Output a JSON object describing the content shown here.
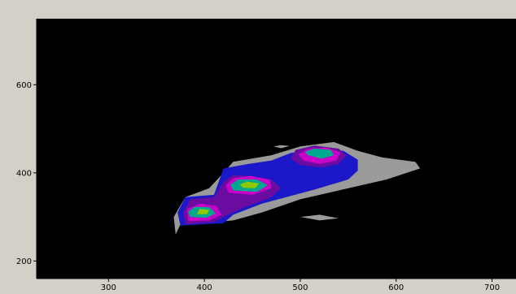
{
  "chart_data": {
    "type": "heatmap",
    "title": "",
    "xlabel": "",
    "ylabel": "",
    "xlim": [
      225,
      725
    ],
    "ylim": [
      160,
      750
    ],
    "x_ticks": [
      300,
      400,
      500,
      600,
      700
    ],
    "y_ticks": [
      200,
      400,
      600
    ],
    "grid": false,
    "legend": "none",
    "colors": {
      "frame": "#d4d0c8",
      "background": "#000000",
      "level_1": "#9a9a9a",
      "level_2": "#1a18c8",
      "level_3": "#6a0ca0",
      "level_4": "#c800c8",
      "level_5": "#00a890",
      "level_6": "#90c800"
    },
    "density_regions": [
      {
        "level": 1,
        "polygon": [
          [
            370,
            260
          ],
          [
            375,
            283
          ],
          [
            400,
            286
          ],
          [
            430,
            292
          ],
          [
            460,
            310
          ],
          [
            500,
            340
          ],
          [
            540,
            360
          ],
          [
            590,
            385
          ],
          [
            625,
            410
          ],
          [
            620,
            425
          ],
          [
            585,
            435
          ],
          [
            560,
            450
          ],
          [
            535,
            470
          ],
          [
            500,
            460
          ],
          [
            470,
            440
          ],
          [
            430,
            425
          ],
          [
            420,
            400
          ],
          [
            405,
            365
          ],
          [
            380,
            345
          ],
          [
            368,
            300
          ]
        ]
      },
      {
        "level": 1,
        "polygon": [
          [
            500,
            300
          ],
          [
            520,
            305
          ],
          [
            540,
            297
          ],
          [
            520,
            292
          ]
        ]
      },
      {
        "level": 1,
        "polygon": [
          [
            472,
            460
          ],
          [
            480,
            463
          ],
          [
            489,
            461
          ],
          [
            480,
            456
          ]
        ]
      },
      {
        "level": 2,
        "polygon": [
          [
            375,
            280
          ],
          [
            420,
            286
          ],
          [
            430,
            305
          ],
          [
            460,
            330
          ],
          [
            515,
            362
          ],
          [
            550,
            385
          ],
          [
            560,
            405
          ],
          [
            560,
            430
          ],
          [
            545,
            450
          ],
          [
            520,
            455
          ],
          [
            490,
            445
          ],
          [
            470,
            428
          ],
          [
            445,
            420
          ],
          [
            420,
            410
          ],
          [
            410,
            350
          ],
          [
            380,
            345
          ],
          [
            372,
            310
          ]
        ]
      },
      {
        "level": 3,
        "polygon": [
          [
            380,
            283
          ],
          [
            410,
            288
          ],
          [
            420,
            300
          ],
          [
            440,
            320
          ],
          [
            470,
            345
          ],
          [
            480,
            365
          ],
          [
            470,
            385
          ],
          [
            450,
            392
          ],
          [
            430,
            395
          ],
          [
            420,
            380
          ],
          [
            410,
            345
          ],
          [
            385,
            340
          ],
          [
            378,
            310
          ]
        ]
      },
      {
        "level": 3,
        "polygon": [
          [
            500,
            418
          ],
          [
            522,
            412
          ],
          [
            540,
            420
          ],
          [
            548,
            440
          ],
          [
            540,
            455
          ],
          [
            515,
            462
          ],
          [
            495,
            452
          ],
          [
            490,
            432
          ]
        ]
      },
      {
        "level": 4,
        "polygon": [
          [
            383,
            290
          ],
          [
            405,
            292
          ],
          [
            418,
            305
          ],
          [
            412,
            325
          ],
          [
            395,
            330
          ],
          [
            382,
            318
          ]
        ]
      },
      {
        "level": 4,
        "polygon": [
          [
            425,
            355
          ],
          [
            450,
            350
          ],
          [
            470,
            365
          ],
          [
            468,
            385
          ],
          [
            448,
            393
          ],
          [
            430,
            388
          ],
          [
            422,
            372
          ]
        ]
      },
      {
        "level": 4,
        "polygon": [
          [
            503,
            428
          ],
          [
            520,
            420
          ],
          [
            538,
            428
          ],
          [
            542,
            446
          ],
          [
            528,
            457
          ],
          [
            508,
            455
          ],
          [
            498,
            442
          ]
        ]
      },
      {
        "level": 5,
        "polygon": [
          [
            385,
            300
          ],
          [
            402,
            298
          ],
          [
            412,
            308
          ],
          [
            405,
            322
          ],
          [
            390,
            323
          ],
          [
            383,
            312
          ]
        ]
      },
      {
        "level": 5,
        "polygon": [
          [
            430,
            360
          ],
          [
            455,
            357
          ],
          [
            466,
            372
          ],
          [
            455,
            385
          ],
          [
            435,
            385
          ],
          [
            427,
            373
          ]
        ]
      },
      {
        "level": 5,
        "polygon": [
          [
            508,
            440
          ],
          [
            522,
            432
          ],
          [
            535,
            440
          ],
          [
            532,
            452
          ],
          [
            515,
            455
          ],
          [
            505,
            448
          ]
        ]
      },
      {
        "level": 6,
        "polygon": [
          [
            392,
            306
          ],
          [
            403,
            306
          ],
          [
            405,
            316
          ],
          [
            395,
            318
          ]
        ]
      },
      {
        "level": 6,
        "polygon": [
          [
            440,
            366
          ],
          [
            453,
            365
          ],
          [
            457,
            376
          ],
          [
            445,
            380
          ],
          [
            437,
            374
          ]
        ]
      }
    ]
  }
}
